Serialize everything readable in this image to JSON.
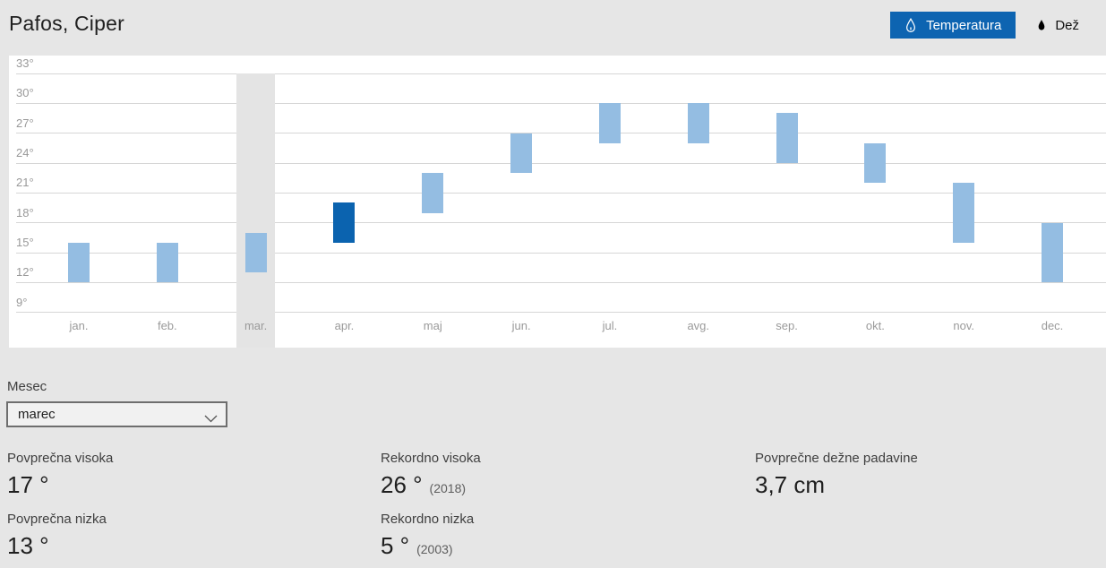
{
  "header": {
    "title": "Pafos, Ciper",
    "toggles": [
      {
        "label": "Temperatura",
        "icon": "thermometer-drop-icon",
        "active": true
      },
      {
        "label": "Dež",
        "icon": "raindrop-icon",
        "active": false
      }
    ],
    "accent_color": "#0d64b1"
  },
  "chart_data": {
    "type": "bar",
    "subtype": "floating-temperature-range-columns",
    "categories": [
      "jan.",
      "feb.",
      "mar.",
      "apr.",
      "maj",
      "jun.",
      "jul.",
      "avg.",
      "sep.",
      "okt.",
      "nov.",
      "dec."
    ],
    "series": [
      {
        "name": "povprečna nizka",
        "values": [
          12,
          12,
          13,
          16,
          19,
          23,
          26,
          26,
          24,
          22,
          16,
          12
        ]
      },
      {
        "name": "povprečna visoka",
        "values": [
          16,
          16,
          17,
          20,
          23,
          27,
          30,
          30,
          29,
          26,
          22,
          18
        ]
      }
    ],
    "unit": "°",
    "y_ticks": [
      33,
      30,
      27,
      24,
      21,
      18,
      15,
      12,
      9
    ],
    "ylim": [
      9,
      33
    ],
    "grid": true,
    "legend": "none",
    "selected_category_index": 2,
    "active_bar_index": 3,
    "colors": {
      "bar": "#94bde2",
      "bar_active": "#0b63af",
      "selected_column_bg": "#e4e4e4",
      "gridline": "#d6d6d6",
      "tick_label": "#999999",
      "month_label": "#9a9a9a"
    }
  },
  "controls": {
    "month_label": "Mesec",
    "month_value": "marec",
    "chevron_icon": "chevron-down-icon"
  },
  "stats": [
    {
      "label": "Povprečna visoka",
      "value": "17 °"
    },
    {
      "label": "Rekordno visoka",
      "value": "26 °",
      "year": "(2018)"
    },
    {
      "label": "Povprečne dežne padavine",
      "value": "3,7 cm"
    },
    {
      "label": "Povprečna nizka",
      "value": "13 °"
    },
    {
      "label": "Rekordno nizka",
      "value": "5 °",
      "year": "(2003)"
    }
  ]
}
